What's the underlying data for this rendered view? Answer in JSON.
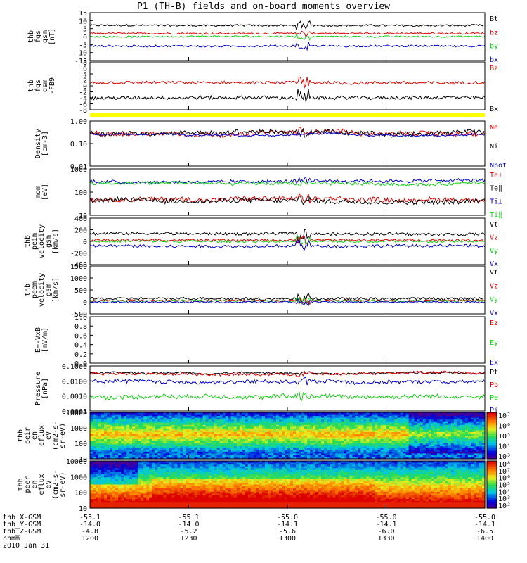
{
  "title": "P1 (TH-B) fields and on-board moments overview",
  "colors": {
    "black": "#000000",
    "red": "#e00000",
    "green": "#10d010",
    "blue": "#0000d0",
    "yellow": "#ffff00"
  },
  "x_axis": {
    "rows": [
      {
        "name": "thb_X-GSM",
        "values": [
          "-55.1",
          "-55.1",
          "-55.0",
          "-55.0",
          "-55.0"
        ]
      },
      {
        "name": "thb_Y-GSM",
        "values": [
          "-14.0",
          "-14.0",
          "-14.1",
          "-14.1",
          "-14.1"
        ]
      },
      {
        "name": "thb_Z-GSM",
        "values": [
          "-4.8",
          "-5.2",
          "-5.6",
          "-6.0",
          "-6.5"
        ]
      },
      {
        "name": "hhmm",
        "values": [
          "1200",
          "1230",
          "1300",
          "1330",
          "1400"
        ]
      }
    ],
    "date": "2010 Jan 31"
  },
  "chart_data": [
    {
      "type": "line",
      "id": "p1",
      "ylabel": [
        "thb",
        "fgs",
        "gsm",
        "[nT]"
      ],
      "yticks": [
        "15",
        "10",
        "5",
        "0",
        "-5",
        "-10",
        "-15"
      ],
      "ylim": [
        -15,
        15
      ],
      "series": [
        {
          "name": "Bt",
          "color": "black",
          "level": 7,
          "noise": 0.6
        },
        {
          "name": "bz",
          "color": "red",
          "level": 2,
          "noise": 0.5
        },
        {
          "name": "by",
          "color": "green",
          "level": 0,
          "noise": 0.5
        },
        {
          "name": "bx",
          "color": "blue",
          "level": -6,
          "noise": 0.6
        }
      ]
    },
    {
      "type": "line",
      "id": "p2",
      "ylabel": [
        "thb",
        "fgs",
        "gsm",
        "-FB9"
      ],
      "yticks": [
        "8",
        "6",
        "4",
        "2",
        "0",
        "-2",
        "-4",
        "-6",
        "-8"
      ],
      "ylim": [
        -8,
        8
      ],
      "series": [
        {
          "name": "Bz",
          "color": "red",
          "level": 1,
          "noise": 0.5
        },
        {
          "name": "Bx",
          "color": "black",
          "level": -4,
          "noise": 0.6
        }
      ]
    },
    {
      "type": "line",
      "id": "p3",
      "ylog": true,
      "ylabel": [
        "Density",
        "[cm-3]"
      ],
      "yticks": [
        "1.00",
        "0.10",
        "0.01"
      ],
      "ylim": [
        0.01,
        1
      ],
      "series": [
        {
          "name": "Ne",
          "color": "red",
          "level": 0.3,
          "noise": 0.1
        },
        {
          "name": "Ni",
          "color": "black",
          "level": 0.3,
          "noise": 0.1
        },
        {
          "name": "Npot",
          "color": "blue",
          "level": 0.25,
          "noise": 0.03
        }
      ]
    },
    {
      "type": "line",
      "id": "p4",
      "ylog": true,
      "ylabel": [
        "mom",
        "[eV]"
      ],
      "yticks": [
        "1000",
        "100",
        "10"
      ],
      "ylim": [
        10,
        3000
      ],
      "series": [
        {
          "name": "Te⊥",
          "color": "red",
          "level": 70,
          "noise": 0.12
        },
        {
          "name": "Te‖",
          "color": "black",
          "level": 60,
          "noise": 0.12
        },
        {
          "name": "Ti⊥",
          "color": "blue",
          "level": 700,
          "noise": 0.08
        },
        {
          "name": "Ti‖",
          "color": "green",
          "level": 500,
          "noise": 0.08
        }
      ]
    },
    {
      "type": "line",
      "id": "p5",
      "ylabel": [
        "thb",
        "peim",
        "velocity",
        "gsm",
        "[km/s]"
      ],
      "yticks": [
        "400",
        "200",
        "0",
        "-200",
        "-400"
      ],
      "ylim": [
        -400,
        400
      ],
      "series": [
        {
          "name": "Vt",
          "color": "black",
          "level": 130,
          "noise": 25
        },
        {
          "name": "Vz",
          "color": "red",
          "level": 20,
          "noise": 20
        },
        {
          "name": "Vy",
          "color": "green",
          "level": 0,
          "noise": 20
        },
        {
          "name": "Vx",
          "color": "blue",
          "level": -80,
          "noise": 25
        }
      ]
    },
    {
      "type": "line",
      "id": "p6",
      "ylabel": [
        "thb",
        "peem",
        "velocity",
        "gsm",
        "[km/s]"
      ],
      "yticks": [
        "1500",
        "1000",
        "500",
        "0",
        "-500"
      ],
      "ylim": [
        -600,
        1600
      ],
      "series": [
        {
          "name": "Vt",
          "color": "black",
          "level": 100,
          "noise": 60
        },
        {
          "name": "Vz",
          "color": "red",
          "level": 10,
          "noise": 40
        },
        {
          "name": "Vy",
          "color": "green",
          "level": 0,
          "noise": 40
        },
        {
          "name": "Vx",
          "color": "blue",
          "level": -60,
          "noise": 40
        }
      ]
    },
    {
      "type": "line",
      "id": "p7",
      "ylabel": [
        "E=-VxB",
        "[mV/m]"
      ],
      "yticks": [
        "1.0",
        "0.8",
        "0.6",
        "0.4",
        "0.2",
        "0.0"
      ],
      "ylim": [
        0,
        1
      ],
      "series": [
        {
          "name": "Ez",
          "color": "red",
          "level": null,
          "noise": 0
        },
        {
          "name": "Ey",
          "color": "green",
          "level": null,
          "noise": 0
        },
        {
          "name": "Ex",
          "color": "blue",
          "level": null,
          "noise": 0
        }
      ]
    },
    {
      "type": "line",
      "id": "p8",
      "ylog": true,
      "ylabel": [
        "Pressure",
        "[nPa]"
      ],
      "yticks": [
        "0.1000",
        "0.0100",
        "0.0010",
        "0.0001"
      ],
      "ylim": [
        0.0001,
        0.12
      ],
      "series": [
        {
          "name": "Pt",
          "color": "black",
          "level": 0.04,
          "noise": 0.05
        },
        {
          "name": "Pb",
          "color": "red",
          "level": 0.035,
          "noise": 0.08
        },
        {
          "name": "Pe",
          "color": "green",
          "level": 0.001,
          "noise": 0.15
        },
        {
          "name": "Pi",
          "color": "blue",
          "level": 0.01,
          "noise": 0.12
        }
      ]
    },
    {
      "type": "heatmap",
      "id": "p9",
      "ylabel": [
        "thb",
        "peir",
        "en",
        "eflux",
        "eV",
        "(cm2-s-",
        "sr-eV)"
      ],
      "yticks": [
        "10000",
        "1000",
        "100",
        "10"
      ],
      "ylim": [
        5,
        20000
      ],
      "colorbar": {
        "ticks": [
          "10⁷",
          "10⁶",
          "10⁵",
          "10⁴",
          "10³"
        ],
        "range": [
          3,
          7
        ]
      }
    },
    {
      "type": "heatmap",
      "id": "p10",
      "ylabel": [
        "thb",
        "peer",
        "en",
        "eflux",
        "eV",
        "(cm2-s-",
        "sr-eV)"
      ],
      "yticks": [
        "10000",
        "1000",
        "100",
        "10"
      ],
      "ylim": [
        5,
        20000
      ],
      "colorbar": {
        "ticks": [
          "10⁸",
          "10⁷",
          "10⁶",
          "10⁵",
          "10⁴",
          "10³",
          "10²"
        ],
        "range": [
          2,
          8
        ]
      }
    }
  ]
}
